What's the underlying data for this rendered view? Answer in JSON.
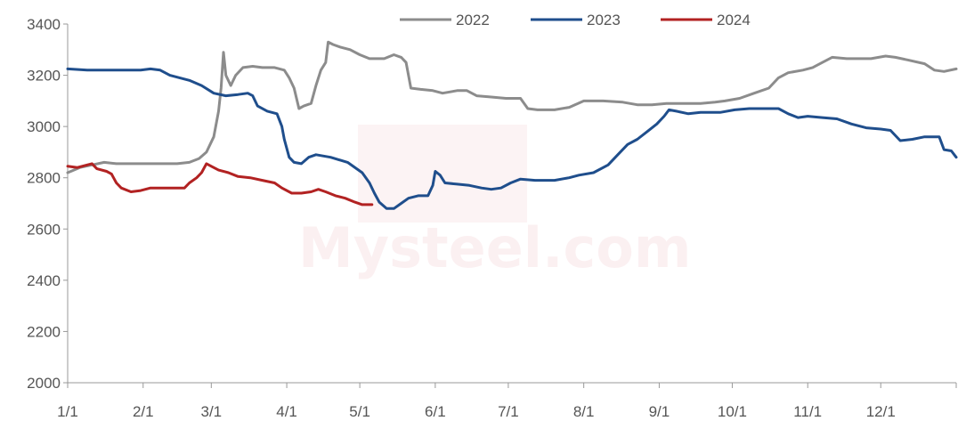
{
  "chart_data": {
    "type": "line",
    "title": "",
    "xlabel": "",
    "ylabel": "",
    "ylim": [
      2000,
      3400
    ],
    "yticks": [
      2000,
      2200,
      2400,
      2600,
      2800,
      3000,
      3200,
      3400
    ],
    "xlim": [
      0,
      365
    ],
    "xticks": [
      {
        "label": "1/1",
        "day": 0
      },
      {
        "label": "2/1",
        "day": 31
      },
      {
        "label": "3/1",
        "day": 59
      },
      {
        "label": "4/1",
        "day": 90
      },
      {
        "label": "5/1",
        "day": 120
      },
      {
        "label": "6/1",
        "day": 151
      },
      {
        "label": "7/1",
        "day": 181
      },
      {
        "label": "8/1",
        "day": 212
      },
      {
        "label": "9/1",
        "day": 243
      },
      {
        "label": "10/1",
        "day": 273
      },
      {
        "label": "11/1",
        "day": 304
      },
      {
        "label": "12/1",
        "day": 334
      }
    ],
    "grid": false,
    "legend_position": "top",
    "watermark": "Mysteel.com",
    "series": [
      {
        "name": "2022",
        "color": "#8c8c8c",
        "points": [
          [
            0,
            2820
          ],
          [
            5,
            2840
          ],
          [
            10,
            2850
          ],
          [
            15,
            2860
          ],
          [
            20,
            2855
          ],
          [
            30,
            2855
          ],
          [
            40,
            2855
          ],
          [
            45,
            2855
          ],
          [
            50,
            2860
          ],
          [
            54,
            2875
          ],
          [
            57,
            2900
          ],
          [
            60,
            2960
          ],
          [
            62,
            3060
          ],
          [
            63,
            3150
          ],
          [
            64,
            3290
          ],
          [
            65,
            3200
          ],
          [
            67,
            3160
          ],
          [
            69,
            3200
          ],
          [
            72,
            3230
          ],
          [
            76,
            3235
          ],
          [
            80,
            3230
          ],
          [
            85,
            3230
          ],
          [
            89,
            3220
          ],
          [
            91,
            3190
          ],
          [
            93,
            3150
          ],
          [
            95,
            3070
          ],
          [
            97,
            3080
          ],
          [
            100,
            3090
          ],
          [
            102,
            3160
          ],
          [
            104,
            3220
          ],
          [
            106,
            3250
          ],
          [
            107,
            3330
          ],
          [
            109,
            3320
          ],
          [
            112,
            3310
          ],
          [
            116,
            3300
          ],
          [
            120,
            3280
          ],
          [
            124,
            3265
          ],
          [
            130,
            3265
          ],
          [
            134,
            3280
          ],
          [
            137,
            3270
          ],
          [
            139,
            3250
          ],
          [
            141,
            3150
          ],
          [
            145,
            3145
          ],
          [
            150,
            3140
          ],
          [
            154,
            3130
          ],
          [
            160,
            3140
          ],
          [
            164,
            3140
          ],
          [
            168,
            3120
          ],
          [
            174,
            3115
          ],
          [
            180,
            3110
          ],
          [
            186,
            3110
          ],
          [
            189,
            3070
          ],
          [
            193,
            3065
          ],
          [
            200,
            3065
          ],
          [
            206,
            3075
          ],
          [
            212,
            3100
          ],
          [
            220,
            3100
          ],
          [
            228,
            3095
          ],
          [
            234,
            3085
          ],
          [
            240,
            3085
          ],
          [
            246,
            3090
          ],
          [
            252,
            3090
          ],
          [
            260,
            3090
          ],
          [
            266,
            3095
          ],
          [
            270,
            3100
          ],
          [
            276,
            3110
          ],
          [
            282,
            3130
          ],
          [
            288,
            3150
          ],
          [
            292,
            3190
          ],
          [
            296,
            3210
          ],
          [
            302,
            3220
          ],
          [
            306,
            3230
          ],
          [
            310,
            3250
          ],
          [
            314,
            3270
          ],
          [
            320,
            3265
          ],
          [
            330,
            3265
          ],
          [
            336,
            3275
          ],
          [
            340,
            3270
          ],
          [
            345,
            3260
          ],
          [
            352,
            3245
          ],
          [
            356,
            3220
          ],
          [
            360,
            3215
          ],
          [
            365,
            3225
          ]
        ]
      },
      {
        "name": "2023",
        "color": "#1f4e8c",
        "points": [
          [
            0,
            3225
          ],
          [
            8,
            3220
          ],
          [
            20,
            3220
          ],
          [
            30,
            3220
          ],
          [
            34,
            3225
          ],
          [
            38,
            3220
          ],
          [
            42,
            3200
          ],
          [
            50,
            3180
          ],
          [
            55,
            3160
          ],
          [
            60,
            3130
          ],
          [
            65,
            3120
          ],
          [
            70,
            3125
          ],
          [
            74,
            3130
          ],
          [
            76,
            3120
          ],
          [
            78,
            3080
          ],
          [
            82,
            3060
          ],
          [
            86,
            3050
          ],
          [
            88,
            3000
          ],
          [
            89,
            2950
          ],
          [
            91,
            2880
          ],
          [
            93,
            2860
          ],
          [
            96,
            2855
          ],
          [
            99,
            2880
          ],
          [
            102,
            2890
          ],
          [
            108,
            2880
          ],
          [
            115,
            2860
          ],
          [
            121,
            2820
          ],
          [
            124,
            2780
          ],
          [
            126,
            2740
          ],
          [
            128,
            2705
          ],
          [
            131,
            2680
          ],
          [
            134,
            2680
          ],
          [
            137,
            2700
          ],
          [
            140,
            2720
          ],
          [
            144,
            2730
          ],
          [
            148,
            2730
          ],
          [
            150,
            2770
          ],
          [
            151,
            2825
          ],
          [
            153,
            2810
          ],
          [
            155,
            2780
          ],
          [
            160,
            2775
          ],
          [
            165,
            2770
          ],
          [
            170,
            2760
          ],
          [
            174,
            2755
          ],
          [
            178,
            2760
          ],
          [
            182,
            2780
          ],
          [
            186,
            2795
          ],
          [
            192,
            2790
          ],
          [
            200,
            2790
          ],
          [
            206,
            2800
          ],
          [
            210,
            2810
          ],
          [
            216,
            2820
          ],
          [
            222,
            2850
          ],
          [
            226,
            2890
          ],
          [
            230,
            2930
          ],
          [
            234,
            2950
          ],
          [
            238,
            2980
          ],
          [
            242,
            3010
          ],
          [
            245,
            3040
          ],
          [
            247,
            3065
          ],
          [
            250,
            3060
          ],
          [
            255,
            3050
          ],
          [
            260,
            3055
          ],
          [
            268,
            3055
          ],
          [
            274,
            3065
          ],
          [
            280,
            3070
          ],
          [
            286,
            3070
          ],
          [
            292,
            3070
          ],
          [
            296,
            3050
          ],
          [
            300,
            3035
          ],
          [
            304,
            3040
          ],
          [
            310,
            3035
          ],
          [
            316,
            3030
          ],
          [
            322,
            3010
          ],
          [
            328,
            2995
          ],
          [
            334,
            2990
          ],
          [
            338,
            2985
          ],
          [
            342,
            2945
          ],
          [
            347,
            2950
          ],
          [
            352,
            2960
          ],
          [
            358,
            2960
          ],
          [
            360,
            2910
          ],
          [
            363,
            2905
          ],
          [
            365,
            2880
          ]
        ]
      },
      {
        "name": "2024",
        "color": "#b22222",
        "points": [
          [
            0,
            2845
          ],
          [
            4,
            2840
          ],
          [
            8,
            2850
          ],
          [
            10,
            2855
          ],
          [
            12,
            2835
          ],
          [
            16,
            2825
          ],
          [
            18,
            2815
          ],
          [
            20,
            2780
          ],
          [
            22,
            2760
          ],
          [
            26,
            2745
          ],
          [
            30,
            2750
          ],
          [
            34,
            2760
          ],
          [
            40,
            2760
          ],
          [
            48,
            2760
          ],
          [
            50,
            2780
          ],
          [
            53,
            2800
          ],
          [
            55,
            2820
          ],
          [
            57,
            2855
          ],
          [
            59,
            2845
          ],
          [
            62,
            2830
          ],
          [
            66,
            2820
          ],
          [
            70,
            2805
          ],
          [
            75,
            2800
          ],
          [
            80,
            2790
          ],
          [
            85,
            2780
          ],
          [
            88,
            2760
          ],
          [
            92,
            2740
          ],
          [
            96,
            2740
          ],
          [
            100,
            2745
          ],
          [
            103,
            2755
          ],
          [
            106,
            2745
          ],
          [
            110,
            2730
          ],
          [
            114,
            2720
          ],
          [
            118,
            2705
          ],
          [
            121,
            2695
          ],
          [
            125,
            2695
          ]
        ]
      }
    ]
  }
}
